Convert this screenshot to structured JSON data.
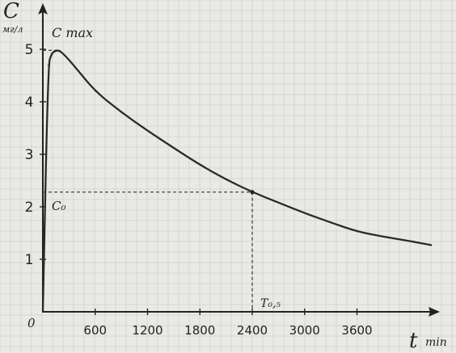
{
  "chart_data": {
    "type": "line",
    "title": "",
    "xlabel": "t",
    "xunit": "min",
    "ylabel": "C",
    "yunit": "мг/л",
    "origin_label": "0",
    "xlim": [
      0,
      4500
    ],
    "ylim": [
      0,
      5.5
    ],
    "x_ticks": [
      600,
      1200,
      1800,
      2400,
      3000,
      3600
    ],
    "x_tick_labels": [
      "600",
      "1200",
      "1800",
      "2400",
      "3000",
      "3600"
    ],
    "y_ticks": [
      1,
      2,
      3,
      4,
      5
    ],
    "y_tick_labels": [
      "1",
      "2",
      "3",
      "4",
      "5"
    ],
    "grid": true,
    "colors": {
      "curve": "#2a2a2a",
      "grid": "#c8c8c4",
      "paper": "#e9e9e6"
    },
    "series": [
      {
        "values_x": [
          0,
          60,
          100,
          150,
          200,
          300,
          400,
          600,
          900,
          1200,
          1500,
          1800,
          2100,
          2400,
          2700,
          3000,
          3300,
          3600,
          3900,
          4200,
          4450
        ],
        "values_y": [
          0,
          4.7,
          4.92,
          4.98,
          4.97,
          4.8,
          4.6,
          4.2,
          3.8,
          3.45,
          3.12,
          2.8,
          2.52,
          2.28,
          2.08,
          1.88,
          1.7,
          1.53,
          1.43,
          1.35,
          1.27
        ]
      }
    ],
    "annotations": {
      "cmax": {
        "label": "C max",
        "x": 150,
        "y": 4.98
      },
      "c0": {
        "label": "C₀",
        "y": 2.28
      },
      "thalf": {
        "label": "T₀,₅",
        "x": 2400,
        "y": 2.28
      }
    }
  }
}
